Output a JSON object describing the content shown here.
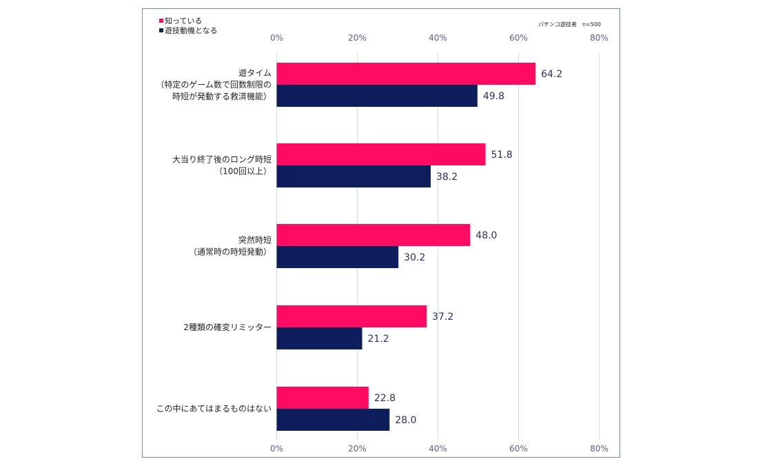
{
  "chart_data": {
    "type": "bar",
    "orientation": "horizontal",
    "note": "パチンコ遊技者　n=500",
    "xlim": [
      0,
      80
    ],
    "x_ticks": [
      "0%",
      "20%",
      "40%",
      "60%",
      "80%"
    ],
    "x_tick_values": [
      0,
      20,
      40,
      60,
      80
    ],
    "grid": true,
    "legend_position": "top-left",
    "categories": [
      [
        "遊タイム",
        "（特定のゲーム数で回数制限の",
        "時短が発動する救済機能）"
      ],
      [
        "大当り終了後のロング時短",
        "（100回以上）"
      ],
      [
        "突然時短",
        "（通常時の時短発動）"
      ],
      [
        "2種類の確変リミッター"
      ],
      [
        "この中にあてはまるものはない"
      ]
    ],
    "series": [
      {
        "name": "知っている",
        "color": "#ff0b62",
        "values": [
          64.2,
          51.8,
          48.0,
          37.2,
          22.8
        ]
      },
      {
        "name": "遊技動機となる",
        "color": "#0e1d5b",
        "values": [
          49.8,
          38.2,
          30.2,
          21.2,
          28.0
        ]
      }
    ]
  }
}
